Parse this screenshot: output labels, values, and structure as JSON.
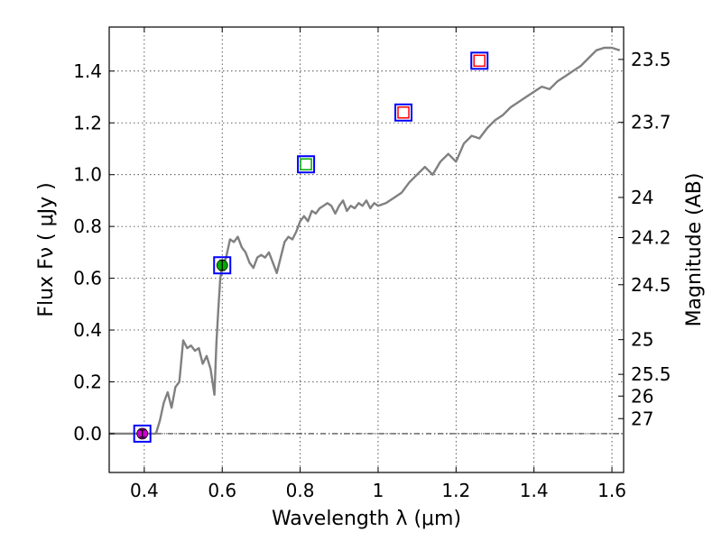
{
  "chart_data": {
    "type": "scatter",
    "title": "",
    "xlabel": "Wavelength  λ (μm)",
    "ylabel": "Flux  Fν  ( μJy )",
    "y2label": "Magnitude (AB)",
    "xlim": [
      0.31,
      1.63
    ],
    "ylim": [
      -0.15,
      1.57
    ],
    "grid": true,
    "x_ticks": [
      {
        "value": 0.4,
        "label": "0.4"
      },
      {
        "value": 0.6,
        "label": "0.6"
      },
      {
        "value": 0.8,
        "label": "0.8"
      },
      {
        "value": 1.0,
        "label": "1"
      },
      {
        "value": 1.2,
        "label": "1.2"
      },
      {
        "value": 1.4,
        "label": "1.4"
      },
      {
        "value": 1.6,
        "label": "1.6"
      }
    ],
    "y_ticks": [
      {
        "value": 0.0,
        "label": "0.0"
      },
      {
        "value": 0.2,
        "label": "0.2"
      },
      {
        "value": 0.4,
        "label": "0.4"
      },
      {
        "value": 0.6,
        "label": "0.6"
      },
      {
        "value": 0.8,
        "label": "0.8"
      },
      {
        "value": 1.0,
        "label": "1.0"
      },
      {
        "value": 1.2,
        "label": "1.2"
      },
      {
        "value": 1.4,
        "label": "1.4"
      }
    ],
    "magnitude_ticks": [
      {
        "flux": 1.445,
        "label": "23.5"
      },
      {
        "flux": 1.202,
        "label": "23.7"
      },
      {
        "flux": 0.912,
        "label": "24"
      },
      {
        "flux": 0.757,
        "label": "24.2"
      },
      {
        "flux": 0.575,
        "label": "24.5"
      },
      {
        "flux": 0.363,
        "label": "25"
      },
      {
        "flux": 0.229,
        "label": "25.5"
      },
      {
        "flux": 0.145,
        "label": "26"
      },
      {
        "flux": 0.058,
        "label": "27"
      }
    ],
    "zero_line": 0.0,
    "colors": {
      "spectrum": "#808080",
      "box": "#0000ff",
      "green_marker": "#00aa00",
      "magenta_marker": "#cc00cc",
      "red_marker": "#ff0000"
    },
    "series": [
      {
        "style": "line",
        "color": "#808080",
        "x": [
          0.31,
          0.4,
          0.42,
          0.43,
          0.44,
          0.45,
          0.46,
          0.47,
          0.48,
          0.49,
          0.5,
          0.51,
          0.52,
          0.53,
          0.54,
          0.55,
          0.56,
          0.57,
          0.58,
          0.585,
          0.59,
          0.595,
          0.6,
          0.61,
          0.62,
          0.63,
          0.64,
          0.65,
          0.66,
          0.67,
          0.68,
          0.69,
          0.7,
          0.71,
          0.72,
          0.73,
          0.74,
          0.75,
          0.76,
          0.77,
          0.78,
          0.79,
          0.8,
          0.81,
          0.82,
          0.83,
          0.84,
          0.85,
          0.86,
          0.87,
          0.88,
          0.89,
          0.9,
          0.91,
          0.92,
          0.93,
          0.94,
          0.95,
          0.96,
          0.97,
          0.98,
          0.99,
          1.0,
          1.02,
          1.04,
          1.06,
          1.08,
          1.1,
          1.12,
          1.14,
          1.16,
          1.18,
          1.2,
          1.22,
          1.24,
          1.26,
          1.28,
          1.3,
          1.32,
          1.34,
          1.36,
          1.38,
          1.4,
          1.42,
          1.44,
          1.46,
          1.48,
          1.5,
          1.52,
          1.54,
          1.56,
          1.58,
          1.6,
          1.62
        ],
        "y": [
          0.0,
          0.0,
          0.0,
          0.0,
          0.05,
          0.12,
          0.16,
          0.1,
          0.18,
          0.2,
          0.36,
          0.33,
          0.34,
          0.32,
          0.33,
          0.27,
          0.3,
          0.25,
          0.15,
          0.35,
          0.48,
          0.6,
          0.64,
          0.68,
          0.75,
          0.74,
          0.76,
          0.72,
          0.7,
          0.66,
          0.64,
          0.68,
          0.69,
          0.68,
          0.7,
          0.66,
          0.62,
          0.68,
          0.74,
          0.76,
          0.75,
          0.78,
          0.82,
          0.84,
          0.82,
          0.86,
          0.85,
          0.87,
          0.88,
          0.89,
          0.88,
          0.85,
          0.88,
          0.9,
          0.86,
          0.88,
          0.87,
          0.89,
          0.88,
          0.9,
          0.87,
          0.89,
          0.88,
          0.89,
          0.91,
          0.93,
          0.97,
          1.0,
          1.03,
          1.0,
          1.05,
          1.08,
          1.05,
          1.12,
          1.15,
          1.14,
          1.18,
          1.21,
          1.23,
          1.26,
          1.28,
          1.3,
          1.32,
          1.34,
          1.33,
          1.36,
          1.38,
          1.4,
          1.42,
          1.45,
          1.48,
          1.49,
          1.49,
          1.48
        ]
      },
      {
        "style": "marker",
        "points": [
          {
            "x": 0.395,
            "y": 0.0,
            "marker": "circle",
            "color": "#cc00cc",
            "err": 0.01
          },
          {
            "x": 0.6,
            "y": 0.65,
            "marker": "circle",
            "color": "#00aa00",
            "err": 0.02
          },
          {
            "x": 0.815,
            "y": 1.04,
            "marker": "open-square",
            "color": "#00aa00"
          },
          {
            "x": 1.065,
            "y": 1.24,
            "marker": "open-square",
            "color": "#ff0000"
          },
          {
            "x": 1.26,
            "y": 1.44,
            "marker": "open-square",
            "color": "#ff0000"
          }
        ]
      }
    ]
  }
}
